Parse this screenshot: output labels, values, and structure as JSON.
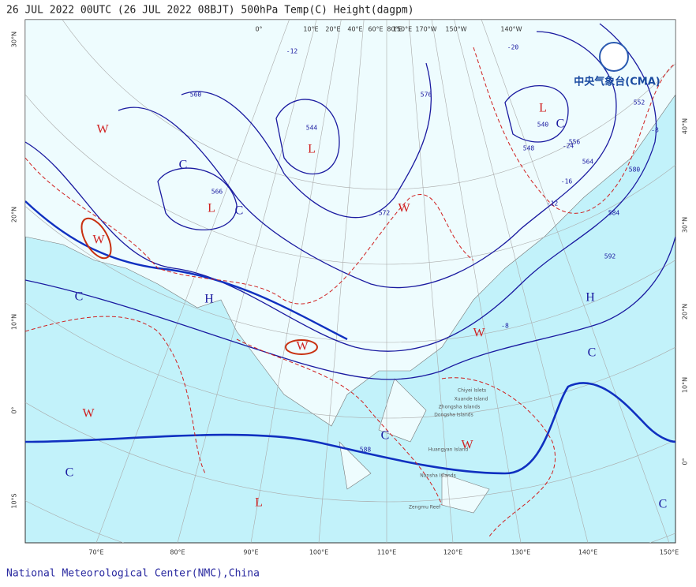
{
  "header": {
    "title": "26 JUL 2022 00UTC (26 JUL 2022 08BJT) 500hPa Temp(C) Height(dagpm)"
  },
  "footer": {
    "credit": "National Meteorological Center(NMC),China"
  },
  "logo": {
    "text": "中央气象台(CMA)"
  },
  "labels": {
    "bottom": [
      "70°E",
      "80°E",
      "90°E",
      "100°E",
      "110°E",
      "120°E",
      "130°E",
      "140°E",
      "150°E"
    ],
    "left": [
      "30°N",
      "20°N",
      "10°N",
      "0°",
      "10°S"
    ],
    "right": [
      "40°N",
      "30°N",
      "20°N",
      "10°N",
      "0°"
    ],
    "top": [
      "0°",
      "10°E",
      "20°E",
      "40°E",
      "60°E",
      "80°E",
      "150°E",
      "170°W",
      "150°W",
      "140°W"
    ]
  },
  "systems": [
    "W",
    "W",
    "C",
    "L",
    "C",
    "C",
    "H",
    "L",
    "L",
    "C",
    "W",
    "W",
    "W",
    "H",
    "C",
    "W",
    "C",
    "C",
    "W",
    "L",
    "C"
  ],
  "contours": [
    "588",
    "592",
    "584",
    "580",
    "564",
    "556",
    "548",
    "540",
    "544",
    "560",
    "566",
    "572",
    "576",
    "552"
  ],
  "temps": [
    "-8",
    "-12",
    "-16",
    "-20",
    "-24",
    "-12",
    "-8"
  ],
  "places": [
    "Chiyei Islets",
    "Xuande Island",
    "Zhongsha Islands",
    "Dongsha Islands",
    "Huangyan Island",
    "Nansha Islands",
    "Zengmu Reef"
  ]
}
